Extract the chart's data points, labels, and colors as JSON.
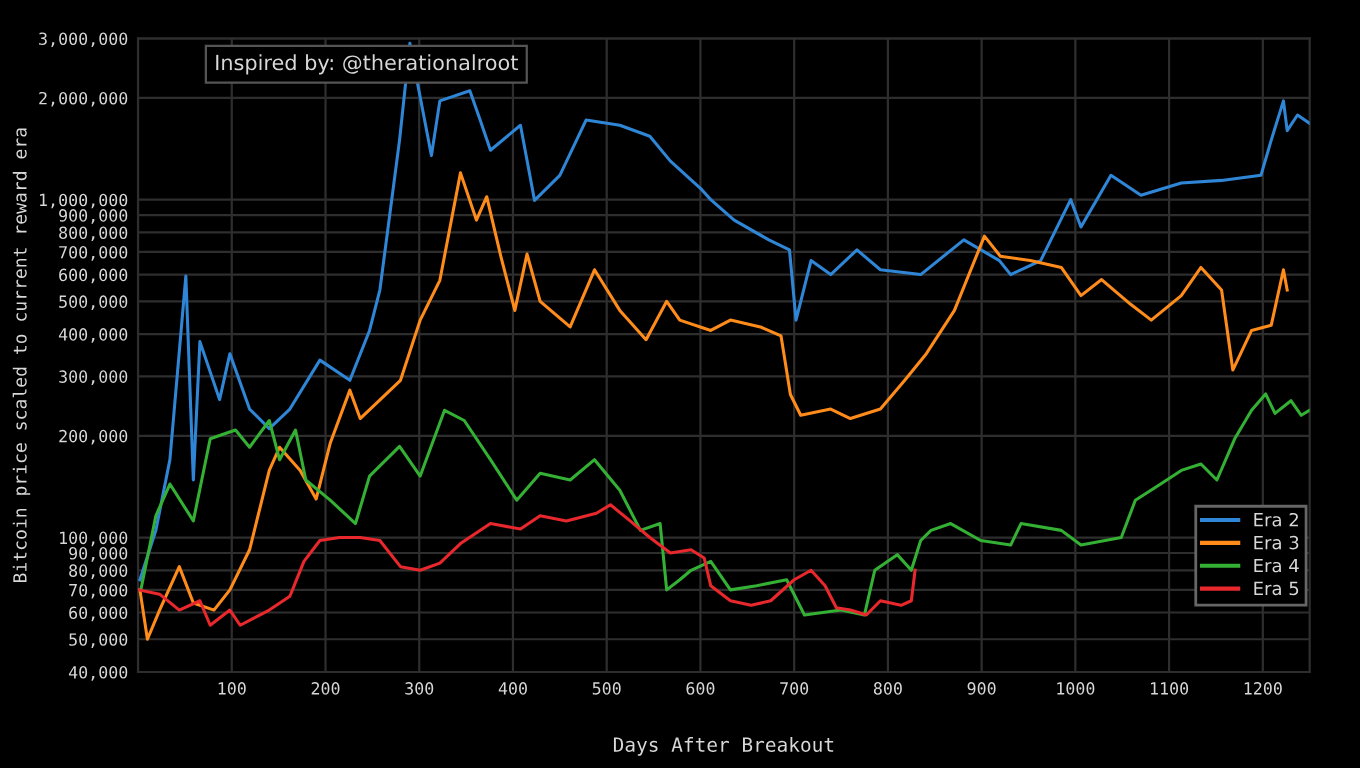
{
  "chart_data": {
    "type": "line",
    "xlabel": "Days After Breakout",
    "ylabel": "Bitcoin price scaled to current reward era",
    "annotations": [
      "Inspired by: @therationalroot"
    ],
    "log": "y",
    "grid": true,
    "legend": "bottom right",
    "line_style": "solid",
    "marker": "none",
    "xlim": [
      0,
      1250
    ],
    "xticks": [
      100,
      200,
      300,
      400,
      500,
      600,
      700,
      800,
      900,
      1000,
      1100,
      1200
    ],
    "ylim": [
      40000,
      3000000
    ],
    "yticks": [
      {
        "value": 40000,
        "label": "40,000"
      },
      {
        "value": 50000,
        "label": "50,000"
      },
      {
        "value": 60000,
        "label": "60,000"
      },
      {
        "value": 70000,
        "label": "70,000"
      },
      {
        "value": 80000,
        "label": "80,000"
      },
      {
        "value": 90000,
        "label": "90,000"
      },
      {
        "value": 100000,
        "label": "100,000"
      },
      {
        "value": 200000,
        "label": "200,000"
      },
      {
        "value": 300000,
        "label": "300,000"
      },
      {
        "value": 400000,
        "label": "400,000"
      },
      {
        "value": 500000,
        "label": "500,000"
      },
      {
        "value": 600000,
        "label": "600,000"
      },
      {
        "value": 700000,
        "label": "700,000"
      },
      {
        "value": 800000,
        "label": "800,000"
      },
      {
        "value": 900000,
        "label": "900,000"
      },
      {
        "value": 1000000,
        "label": "1,000,000"
      },
      {
        "value": 2000000,
        "label": "2,000,000"
      },
      {
        "value": 3000000,
        "label": "3,000,000"
      }
    ],
    "series": [
      {
        "name": "Era 2",
        "color": "#2f86d6",
        "x": [
          2,
          19,
          34,
          51,
          59,
          66,
          87,
          98,
          119,
          140,
          162,
          194,
          226,
          247,
          258,
          279,
          290,
          313,
          322,
          354,
          365,
          376,
          408,
          423,
          450,
          478,
          514,
          546,
          568,
          600,
          611,
          636,
          673,
          695,
          702,
          718,
          739,
          767,
          792,
          835,
          881,
          919,
          931,
          963,
          995,
          1006,
          1038,
          1070,
          1113,
          1156,
          1198,
          1209,
          1222,
          1226,
          1237,
          1250
        ],
        "values": [
          75000,
          105000,
          170000,
          594000,
          148000,
          380000,
          256000,
          350000,
          240000,
          210000,
          240000,
          335000,
          292000,
          410000,
          540000,
          1500000,
          2900000,
          1350000,
          1960000,
          2100000,
          1720000,
          1400000,
          1660000,
          995000,
          1180000,
          1720000,
          1660000,
          1540000,
          1300000,
          1080000,
          1000000,
          870000,
          760000,
          710000,
          440000,
          660000,
          600000,
          710000,
          620000,
          600000,
          760000,
          660000,
          600000,
          660000,
          1000000,
          830000,
          1180000,
          1030000,
          1120000,
          1140000,
          1180000,
          1500000,
          1960000,
          1600000,
          1780000,
          1680000
        ]
      },
      {
        "name": "Era 3",
        "color": "#ff8c1a",
        "x": [
          2,
          10,
          23,
          44,
          59,
          81,
          98,
          119,
          140,
          151,
          173,
          190,
          205,
          226,
          237,
          280,
          301,
          322,
          344,
          361,
          372,
          387,
          402,
          415,
          429,
          461,
          487,
          514,
          542,
          564,
          578,
          611,
          632,
          664,
          686,
          696,
          707,
          739,
          760,
          792,
          818,
          841,
          871,
          903,
          920,
          952,
          985,
          1006,
          1028,
          1059,
          1081,
          1113,
          1134,
          1156,
          1168,
          1188,
          1209,
          1222,
          1226
        ],
        "values": [
          70000,
          50000,
          61000,
          82000,
          64000,
          61000,
          70000,
          92000,
          158000,
          185000,
          158000,
          130000,
          190000,
          273000,
          225000,
          292000,
          440000,
          577000,
          1200000,
          870000,
          1020000,
          680000,
          470000,
          690000,
          500000,
          420000,
          620000,
          470000,
          385000,
          500000,
          440000,
          410000,
          440000,
          420000,
          395000,
          265000,
          230000,
          240000,
          225000,
          240000,
          292000,
          350000,
          470000,
          780000,
          680000,
          660000,
          630000,
          520000,
          580000,
          490000,
          440000,
          520000,
          630000,
          540000,
          313000,
          410000,
          425000,
          620000,
          540000
        ]
      },
      {
        "name": "Era 4",
        "color": "#34b034",
        "x": [
          3,
          19,
          34,
          59,
          77,
          104,
          119,
          140,
          151,
          168,
          179,
          205,
          232,
          247,
          279,
          301,
          327,
          348,
          376,
          404,
          429,
          461,
          487,
          514,
          536,
          557,
          564,
          578,
          590,
          611,
          632,
          660,
          692,
          711,
          750,
          775,
          786,
          810,
          825,
          835,
          846,
          867,
          899,
          931,
          942,
          985,
          1006,
          1049,
          1064,
          1091,
          1113,
          1134,
          1151,
          1170,
          1188,
          1203,
          1213,
          1230,
          1241,
          1250
        ],
        "values": [
          70000,
          116000,
          144000,
          112000,
          196000,
          208000,
          185000,
          222000,
          170000,
          208000,
          148000,
          129000,
          110000,
          152000,
          186000,
          152000,
          238000,
          222000,
          170000,
          129000,
          155000,
          148000,
          170000,
          138000,
          105000,
          110000,
          70000,
          75000,
          80000,
          85000,
          70000,
          72000,
          75000,
          59000,
          61000,
          59000,
          80000,
          89000,
          80000,
          98000,
          105000,
          110000,
          98000,
          95000,
          110000,
          105000,
          95000,
          100000,
          129000,
          144000,
          158000,
          165000,
          148000,
          196000,
          238000,
          266000,
          233000,
          254000,
          230000,
          238000
        ]
      },
      {
        "name": "Era 5",
        "color": "#e8282c",
        "x": [
          1,
          23,
          44,
          66,
          77,
          98,
          109,
          140,
          162,
          177,
          194,
          215,
          237,
          258,
          280,
          301,
          322,
          344,
          376,
          408,
          429,
          457,
          489,
          504,
          525,
          546,
          568,
          590,
          604,
          611,
          632,
          654,
          675,
          700,
          718,
          733,
          745,
          760,
          777,
          792,
          814,
          825,
          829
        ],
        "values": [
          70000,
          68000,
          61000,
          65000,
          55000,
          61000,
          55000,
          61000,
          67000,
          85000,
          98000,
          100000,
          100000,
          98000,
          82000,
          80000,
          84000,
          96000,
          110000,
          106000,
          116000,
          112000,
          118000,
          125000,
          112000,
          100000,
          90000,
          92000,
          87000,
          72000,
          65000,
          63000,
          65000,
          75000,
          80000,
          72000,
          62000,
          61000,
          59000,
          65000,
          63000,
          65000,
          80000
        ]
      }
    ]
  }
}
